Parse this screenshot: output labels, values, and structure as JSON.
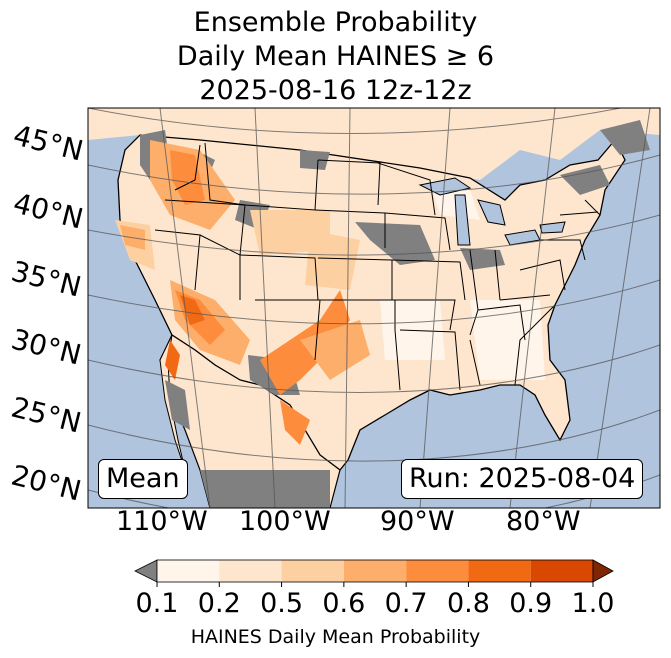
{
  "title": {
    "line1": "Ensemble Probability",
    "line2": "Daily Mean HAINES ≥ 6",
    "line3": "2025-08-16 12z-12z"
  },
  "map": {
    "lat_labels": [
      "45°N",
      "40°N",
      "35°N",
      "30°N",
      "25°N",
      "20°N"
    ],
    "lon_labels": [
      "110°W",
      "100°W",
      "90°W",
      "80°W"
    ],
    "stat_box": "Mean",
    "run_box": "Run: 2025-08-04",
    "colors": {
      "ocean": "#b0c4de",
      "land_gray": "#808080",
      "border": "#000000"
    }
  },
  "colorbar": {
    "ticks": [
      "0.1",
      "0.2",
      "0.5",
      "0.6",
      "0.7",
      "0.8",
      "0.9",
      "1.0"
    ],
    "colors": [
      "#fff5eb",
      "#fee6ce",
      "#fdd0a2",
      "#fdae6b",
      "#fd8d3c",
      "#f16913",
      "#d94801",
      "#a63603"
    ],
    "under_color": "#808080",
    "over_color": "#7f2704",
    "label": "HAINES Daily Mean Probability"
  }
}
